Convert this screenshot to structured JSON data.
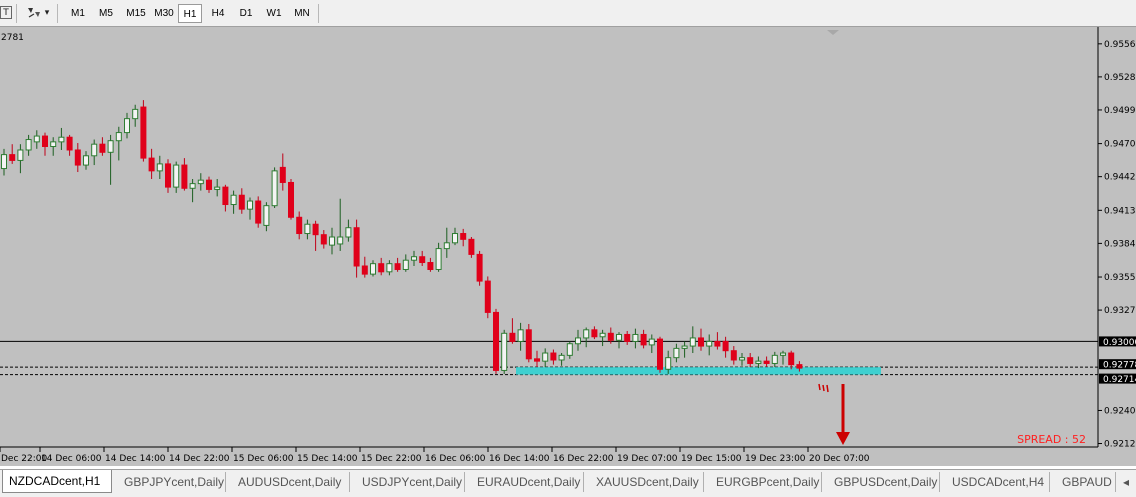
{
  "toolbar": {
    "tool_text_label": "T",
    "shapes_icon": "shapes-icon",
    "dropdown_arrow": "▾",
    "timeframes": [
      "M1",
      "M5",
      "M15",
      "M30",
      "H1",
      "H4",
      "D1",
      "W1",
      "MN"
    ],
    "active_timeframe": "H1"
  },
  "chart": {
    "corner_label": "2781",
    "spread_text": "SPREAD : 52",
    "colors": {
      "background": "#c0c0c0",
      "bull": "#2e7d32",
      "bear": "#e0001a",
      "zone": "#3fd0d0",
      "arrow": "#cc0000",
      "price_label_bg": "#000000"
    },
    "price_ticks": [
      "0.95565",
      "0.95280",
      "0.94995",
      "0.94705",
      "0.94420",
      "0.94130",
      "0.93845",
      "0.93555",
      "0.93270",
      "0.92405",
      "0.92120"
    ],
    "price_lines": [
      {
        "value": 0.93,
        "label": "0.93000",
        "style": "solid"
      },
      {
        "value": 0.92778,
        "label": "0.92778",
        "style": "dashed"
      },
      {
        "value": 0.92714,
        "label": "0.92714",
        "style": "dashed"
      }
    ],
    "time_labels": [
      "Dec 22:00",
      "14 Dec 06:00",
      "14 Dec 14:00",
      "14 Dec 22:00",
      "15 Dec 06:00",
      "15 Dec 14:00",
      "15 Dec 22:00",
      "16 Dec 06:00",
      "16 Dec 14:00",
      "16 Dec 22:00",
      "19 Dec 07:00",
      "19 Dec 15:00",
      "19 Dec 23:00",
      "20 Dec 07:00"
    ],
    "support_zone": {
      "top": 0.92778,
      "bottom": 0.92714
    }
  },
  "tabs": {
    "items": [
      "NZDCADcent,H1",
      "GBPJPYcent,Daily",
      "AUDUSDcent,Daily",
      "USDJPYcent,Daily",
      "EURAUDcent,Daily",
      "XAUUSDcent,Daily",
      "EURGBPcent,Daily",
      "GBPUSDcent,Daily",
      "USDCADcent,H4",
      "GBPAUD"
    ],
    "active": "NZDCADcent,H1",
    "scroll_left": "◂"
  },
  "chart_data": {
    "type": "candlestick",
    "symbol": "NZDCADcent",
    "timeframe": "H1",
    "ylim": [
      0.9209,
      0.9571
    ],
    "candles": [
      [
        0.9449,
        0.9466,
        0.9443,
        0.9461
      ],
      [
        0.9461,
        0.947,
        0.9453,
        0.9456
      ],
      [
        0.9456,
        0.947,
        0.9445,
        0.9465
      ],
      [
        0.9465,
        0.9478,
        0.946,
        0.9474
      ],
      [
        0.9472,
        0.9482,
        0.9466,
        0.9477
      ],
      [
        0.9477,
        0.948,
        0.946,
        0.9468
      ],
      [
        0.9468,
        0.9476,
        0.946,
        0.9472
      ],
      [
        0.9472,
        0.9484,
        0.9465,
        0.9476
      ],
      [
        0.9476,
        0.9478,
        0.946,
        0.9465
      ],
      [
        0.9465,
        0.9471,
        0.9446,
        0.9452
      ],
      [
        0.9452,
        0.9464,
        0.9448,
        0.946
      ],
      [
        0.946,
        0.9474,
        0.9452,
        0.947
      ],
      [
        0.947,
        0.9476,
        0.946,
        0.9463
      ],
      [
        0.9463,
        0.9478,
        0.9435,
        0.9473
      ],
      [
        0.9473,
        0.9485,
        0.9456,
        0.948
      ],
      [
        0.948,
        0.9497,
        0.9475,
        0.9492
      ],
      [
        0.9492,
        0.9504,
        0.9485,
        0.95
      ],
      [
        0.9502,
        0.9508,
        0.9455,
        0.9458
      ],
      [
        0.9458,
        0.9466,
        0.944,
        0.9447
      ],
      [
        0.9447,
        0.946,
        0.944,
        0.9453
      ],
      [
        0.9453,
        0.9457,
        0.9428,
        0.9433
      ],
      [
        0.9433,
        0.9455,
        0.9428,
        0.9452
      ],
      [
        0.9452,
        0.9458,
        0.943,
        0.9432
      ],
      [
        0.9432,
        0.944,
        0.942,
        0.9436
      ],
      [
        0.9436,
        0.9445,
        0.943,
        0.9439
      ],
      [
        0.9439,
        0.9442,
        0.9428,
        0.9431
      ],
      [
        0.9431,
        0.944,
        0.9425,
        0.9433
      ],
      [
        0.9433,
        0.9435,
        0.9412,
        0.9418
      ],
      [
        0.9418,
        0.943,
        0.941,
        0.9426
      ],
      [
        0.9426,
        0.9432,
        0.941,
        0.9414
      ],
      [
        0.9414,
        0.9424,
        0.9405,
        0.9421
      ],
      [
        0.9421,
        0.9425,
        0.9398,
        0.9402
      ],
      [
        0.94,
        0.942,
        0.9395,
        0.9417
      ],
      [
        0.9417,
        0.945,
        0.9415,
        0.9447
      ],
      [
        0.945,
        0.9462,
        0.943,
        0.9437
      ],
      [
        0.9437,
        0.944,
        0.9405,
        0.9407
      ],
      [
        0.9407,
        0.9412,
        0.9388,
        0.9393
      ],
      [
        0.9393,
        0.9405,
        0.9388,
        0.9401
      ],
      [
        0.9401,
        0.9404,
        0.9378,
        0.9392
      ],
      [
        0.9392,
        0.9396,
        0.938,
        0.9384
      ],
      [
        0.9383,
        0.9398,
        0.9375,
        0.939
      ],
      [
        0.9384,
        0.9423,
        0.9378,
        0.939
      ],
      [
        0.939,
        0.9405,
        0.9386,
        0.9398
      ],
      [
        0.9398,
        0.9405,
        0.9355,
        0.9365
      ],
      [
        0.9365,
        0.9373,
        0.9355,
        0.9358
      ],
      [
        0.9358,
        0.937,
        0.9356,
        0.9367
      ],
      [
        0.9367,
        0.9372,
        0.9357,
        0.936
      ],
      [
        0.936,
        0.937,
        0.9357,
        0.9367
      ],
      [
        0.9367,
        0.9372,
        0.936,
        0.9362
      ],
      [
        0.9362,
        0.9375,
        0.936,
        0.937
      ],
      [
        0.937,
        0.9378,
        0.9365,
        0.9373
      ],
      [
        0.9373,
        0.9378,
        0.9365,
        0.9368
      ],
      [
        0.9368,
        0.9372,
        0.936,
        0.9362
      ],
      [
        0.9362,
        0.9385,
        0.936,
        0.938
      ],
      [
        0.938,
        0.9398,
        0.9372,
        0.9385
      ],
      [
        0.9385,
        0.9398,
        0.9383,
        0.9393
      ],
      [
        0.9393,
        0.9397,
        0.9382,
        0.9388
      ],
      [
        0.9388,
        0.939,
        0.9372,
        0.9375
      ],
      [
        0.9375,
        0.9378,
        0.9348,
        0.9352
      ],
      [
        0.9352,
        0.9356,
        0.932,
        0.9325
      ],
      [
        0.9325,
        0.9328,
        0.9272,
        0.9275
      ],
      [
        0.9275,
        0.931,
        0.9272,
        0.9307
      ],
      [
        0.9307,
        0.932,
        0.9298,
        0.93
      ],
      [
        0.93,
        0.9316,
        0.9292,
        0.931
      ],
      [
        0.931,
        0.9315,
        0.9282,
        0.9285
      ],
      [
        0.9285,
        0.9292,
        0.9278,
        0.9283
      ],
      [
        0.9283,
        0.9294,
        0.9278,
        0.929
      ],
      [
        0.929,
        0.9293,
        0.928,
        0.9284
      ],
      [
        0.9284,
        0.929,
        0.9279,
        0.9288
      ],
      [
        0.9288,
        0.93,
        0.9285,
        0.9298
      ],
      [
        0.9298,
        0.931,
        0.9292,
        0.9303
      ],
      [
        0.9303,
        0.9312,
        0.9295,
        0.931
      ],
      [
        0.931,
        0.9313,
        0.9302,
        0.9304
      ],
      [
        0.9304,
        0.931,
        0.9296,
        0.9307
      ],
      [
        0.9307,
        0.9312,
        0.9298,
        0.9301
      ],
      [
        0.9301,
        0.9308,
        0.9294,
        0.9306
      ],
      [
        0.9306,
        0.9309,
        0.9297,
        0.93
      ],
      [
        0.93,
        0.9311,
        0.9294,
        0.9306
      ],
      [
        0.9306,
        0.931,
        0.9294,
        0.9297
      ],
      [
        0.9297,
        0.9306,
        0.929,
        0.9302
      ],
      [
        0.9302,
        0.9304,
        0.9273,
        0.9276
      ],
      [
        0.9276,
        0.9292,
        0.9272,
        0.9286
      ],
      [
        0.9286,
        0.9298,
        0.9282,
        0.9294
      ],
      [
        0.9294,
        0.93,
        0.9286,
        0.9296
      ],
      [
        0.9296,
        0.9313,
        0.929,
        0.9303
      ],
      [
        0.9303,
        0.9311,
        0.9292,
        0.9296
      ],
      [
        0.9296,
        0.9306,
        0.9288,
        0.93
      ],
      [
        0.93,
        0.9308,
        0.9293,
        0.9296
      ],
      [
        0.93,
        0.9304,
        0.9286,
        0.9292
      ],
      [
        0.9292,
        0.9296,
        0.928,
        0.9284
      ],
      [
        0.9284,
        0.929,
        0.9279,
        0.9286
      ],
      [
        0.9286,
        0.929,
        0.9278,
        0.9281
      ],
      [
        0.9281,
        0.9287,
        0.9277,
        0.9283
      ],
      [
        0.9283,
        0.9287,
        0.9278,
        0.9281
      ],
      [
        0.9281,
        0.9291,
        0.9278,
        0.9288
      ],
      [
        0.9288,
        0.9292,
        0.928,
        0.929
      ],
      [
        0.929,
        0.9292,
        0.9276,
        0.928
      ],
      [
        0.928,
        0.9283,
        0.9274,
        0.9277
      ]
    ]
  }
}
